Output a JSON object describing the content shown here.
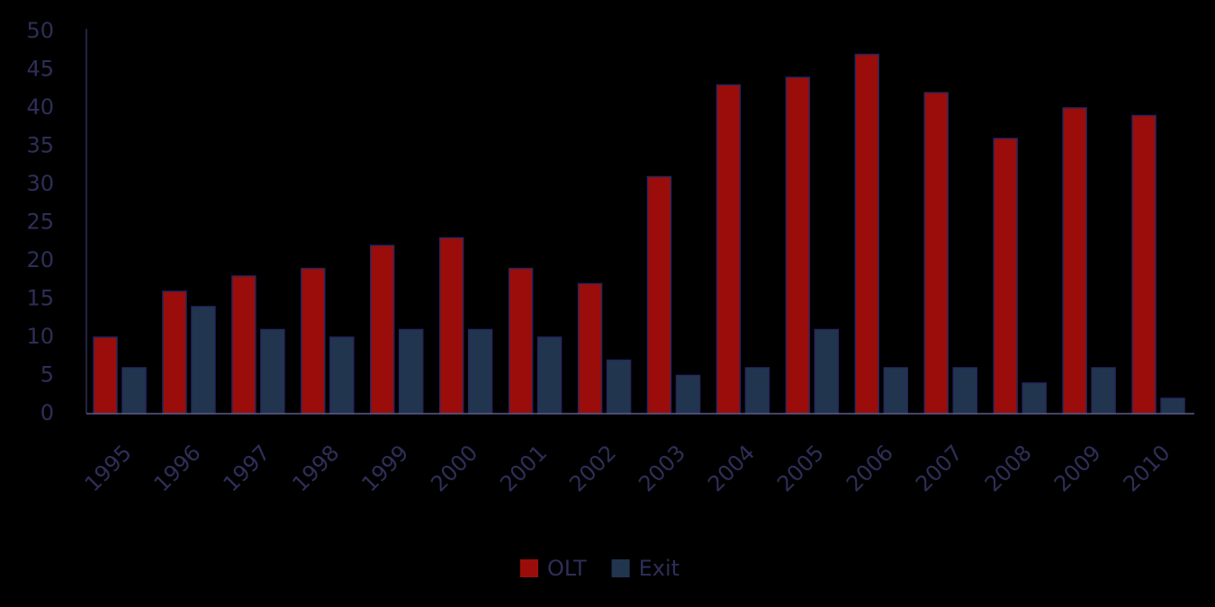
{
  "chart_data": {
    "type": "bar",
    "categories": [
      "1995",
      "1996",
      "1997",
      "1998",
      "1999",
      "2000",
      "2001",
      "2002",
      "2003",
      "2004",
      "2005",
      "2006",
      "2007",
      "2008",
      "2009",
      "2010"
    ],
    "series": [
      {
        "name": "OLT",
        "color": "#9b0d0a",
        "values": [
          10,
          16,
          18,
          19,
          22,
          23,
          19,
          17,
          31,
          43,
          44,
          47,
          42,
          36,
          40,
          39
        ]
      },
      {
        "name": "Exit",
        "color": "#22354f",
        "values": [
          6,
          14,
          11,
          10,
          11,
          11,
          10,
          7,
          5,
          6,
          11,
          6,
          6,
          4,
          6,
          2
        ]
      }
    ],
    "ylim": [
      0,
      50
    ],
    "yticks": [
      0,
      5,
      10,
      15,
      20,
      25,
      30,
      35,
      40,
      45,
      50
    ],
    "legend": "bottom"
  }
}
